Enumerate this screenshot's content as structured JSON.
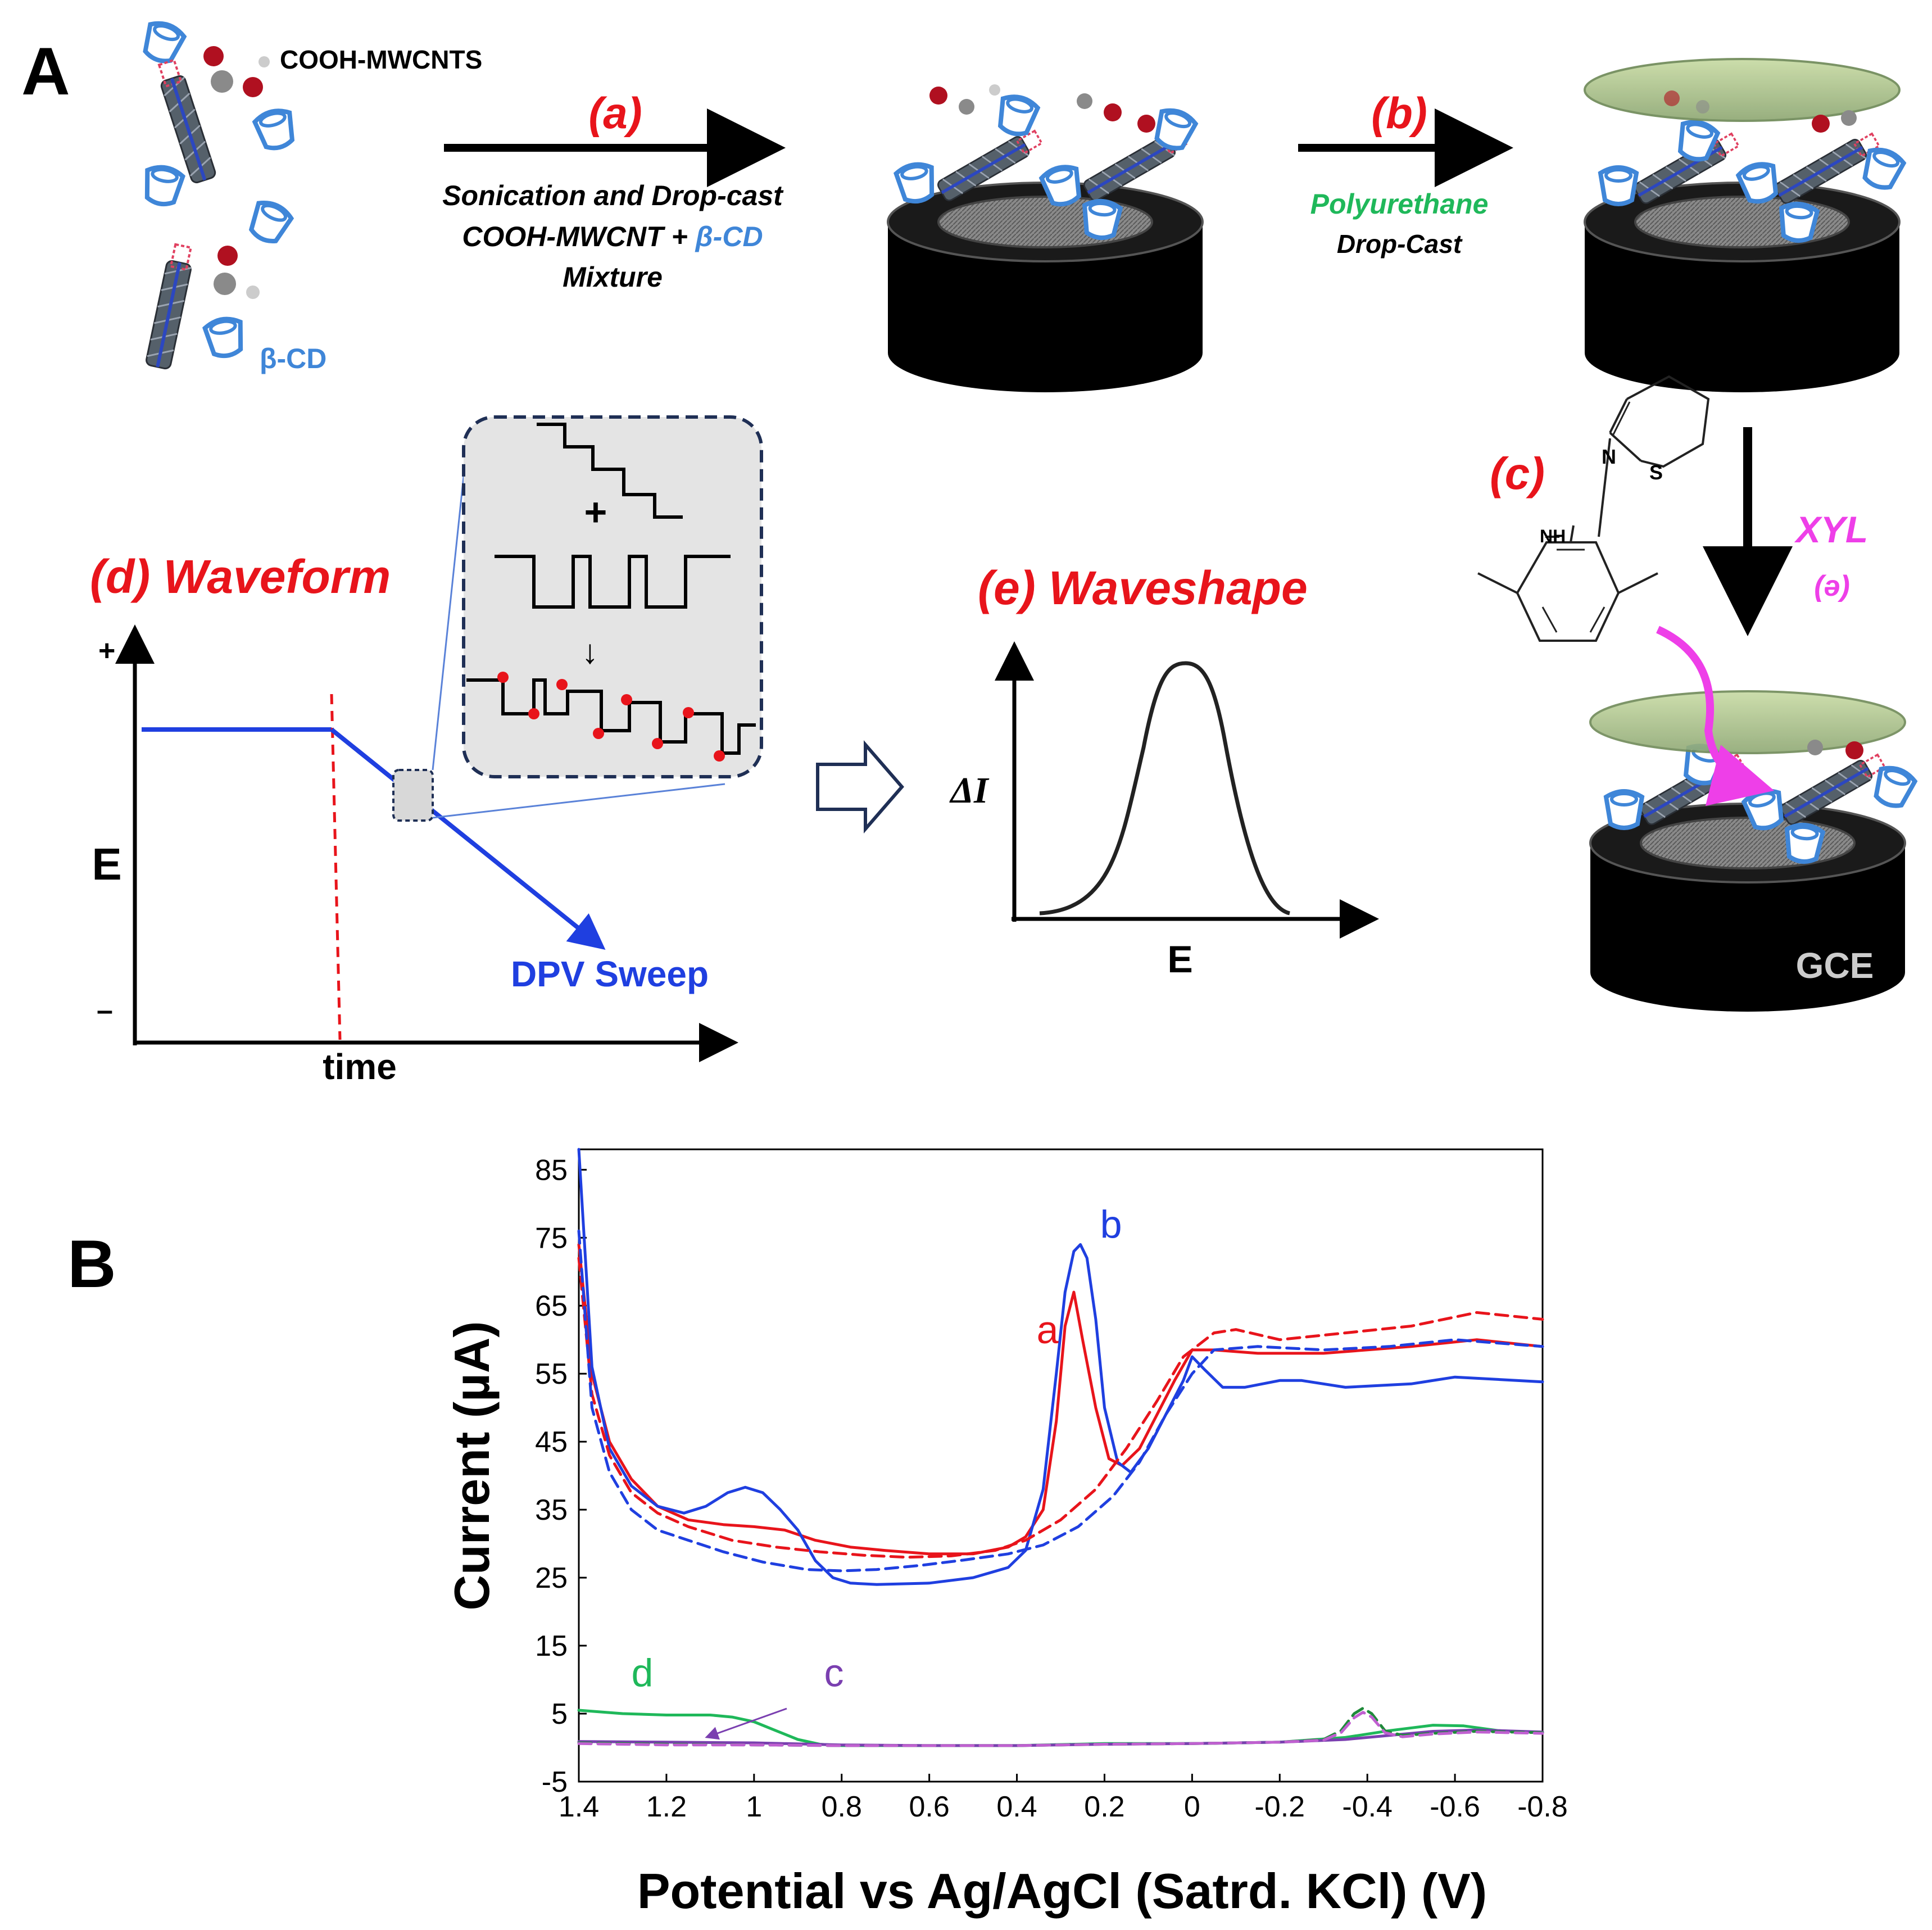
{
  "panel_a": {
    "label": "A",
    "cooh_label": "COOH-MWCNTS",
    "bcd_label": "β-CD",
    "step_a": {
      "tag": "(a)",
      "line1": "Sonication and Drop-cast",
      "line2_black": "COOH-MWCNT + ",
      "line2_blue": "β-CD",
      "line3": "Mixture"
    },
    "step_b": {
      "tag": "(b)",
      "line1": "Polyurethane",
      "line2": "Drop-Cast"
    },
    "step_c": {
      "tag": "(c)",
      "nh_label": "NH",
      "n_label": "N",
      "s_label": "S"
    },
    "xyl": {
      "label": "XYL",
      "symbol": "(ə)"
    },
    "gce_label": "GCE",
    "waveform": {
      "title": "(d) Waveform",
      "plus": "+",
      "minus": "–",
      "y_label": "E",
      "x_label": "time",
      "sweep_label": "DPV Sweep",
      "inset_plus": "+",
      "inset_arrow": "↓"
    },
    "waveshape": {
      "title": "(e) Waveshape",
      "y_label": "ΔI",
      "x_label": "E"
    },
    "colors": {
      "red": "#e8141b",
      "blue": "#1f3fe0",
      "green": "#1fb85a",
      "magenta": "#ee3fe8",
      "cd_blue": "#3f86d8"
    }
  },
  "panel_b": {
    "label": "B",
    "chart_data": {
      "type": "line",
      "xlabel": "Potential vs Ag/AgCl (Satrd. KCl) (V)",
      "ylabel": "Current (µA)",
      "x_range": [
        1.4,
        -0.8
      ],
      "ylim": [
        -5,
        88
      ],
      "x_ticks": [
        "1.4",
        "1.2",
        "1",
        "0.8",
        "0.6",
        "0.4",
        "0.2",
        "0",
        "-0.2",
        "-0.4",
        "-0.6",
        "-0.8"
      ],
      "x_tick_values": [
        1.4,
        1.2,
        1.0,
        0.8,
        0.6,
        0.4,
        0.2,
        0,
        -0.2,
        -0.4,
        -0.6,
        -0.8
      ],
      "y_ticks": [
        "85",
        "75",
        "65",
        "55",
        "45",
        "35",
        "25",
        "15",
        "5",
        "-5"
      ],
      "y_tick_values": [
        85,
        75,
        65,
        55,
        45,
        35,
        25,
        15,
        5,
        -5
      ],
      "grid": false,
      "series": [
        {
          "name": "a",
          "color": "#e8141b",
          "dash": false,
          "x": [
            1.4,
            1.37,
            1.33,
            1.28,
            1.22,
            1.15,
            1.07,
            1.0,
            0.93,
            0.86,
            0.78,
            0.7,
            0.6,
            0.5,
            0.42,
            0.38,
            0.34,
            0.31,
            0.29,
            0.27,
            0.25,
            0.22,
            0.19,
            0.16,
            0.12,
            0.08,
            0.04,
            0.0,
            -0.05,
            -0.15,
            -0.3,
            -0.5,
            -0.65,
            -0.8
          ],
          "y": [
            74,
            55,
            45,
            39.5,
            35.5,
            33.5,
            32.8,
            32.5,
            32,
            30.5,
            29.5,
            29,
            28.5,
            28.5,
            29.5,
            31,
            35,
            48,
            62,
            67,
            60,
            50,
            42.5,
            41.5,
            44,
            49,
            54,
            58.5,
            58.5,
            58,
            58,
            59,
            60,
            59
          ]
        },
        {
          "name": "b",
          "color": "#1f3fe0",
          "dash": false,
          "x": [
            1.4,
            1.37,
            1.33,
            1.28,
            1.22,
            1.16,
            1.11,
            1.06,
            1.02,
            0.98,
            0.94,
            0.9,
            0.86,
            0.82,
            0.78,
            0.72,
            0.6,
            0.5,
            0.42,
            0.38,
            0.34,
            0.31,
            0.29,
            0.27,
            0.255,
            0.24,
            0.22,
            0.2,
            0.17,
            0.14,
            0.1,
            0.06,
            0.02,
            0.0,
            -0.03,
            -0.07,
            -0.12,
            -0.2,
            -0.25,
            -0.35,
            -0.5,
            -0.6,
            -0.8
          ],
          "y": [
            88,
            56,
            44,
            38.5,
            35.5,
            34.5,
            35.5,
            37.5,
            38.3,
            37.5,
            35,
            32,
            27.5,
            25,
            24.2,
            24,
            24.2,
            25,
            26.5,
            29,
            38,
            55,
            67,
            73,
            74,
            72,
            63,
            50,
            42,
            40.5,
            44,
            49,
            54,
            57.5,
            55.5,
            53,
            53,
            54,
            54,
            53,
            53.5,
            54.5,
            53.8
          ]
        },
        {
          "name": "a-dashed",
          "color": "#e8141b",
          "dash": true,
          "x": [
            1.4,
            1.37,
            1.33,
            1.28,
            1.22,
            1.15,
            1.05,
            0.95,
            0.85,
            0.75,
            0.65,
            0.55,
            0.45,
            0.38,
            0.3,
            0.22,
            0.15,
            0.08,
            0.02,
            -0.05,
            -0.1,
            -0.2,
            -0.35,
            -0.5,
            -0.65,
            -0.8
          ],
          "y": [
            72,
            52,
            43,
            37.5,
            34.5,
            32.5,
            30.5,
            29.5,
            28.8,
            28.3,
            28,
            28.2,
            29,
            30.5,
            33.5,
            38,
            44,
            51,
            57.5,
            61,
            61.5,
            60,
            61,
            62,
            64,
            63
          ]
        },
        {
          "name": "b-dashed",
          "color": "#1f3fe0",
          "dash": true,
          "x": [
            1.4,
            1.37,
            1.33,
            1.28,
            1.22,
            1.15,
            1.07,
            0.98,
            0.88,
            0.8,
            0.72,
            0.62,
            0.52,
            0.42,
            0.34,
            0.26,
            0.18,
            0.12,
            0.06,
            0.0,
            -0.05,
            -0.15,
            -0.3,
            -0.45,
            -0.6,
            -0.8
          ],
          "y": [
            76,
            50,
            40.5,
            35,
            32,
            30.5,
            28.8,
            27.3,
            26.2,
            26,
            26.2,
            26.8,
            27.6,
            28.5,
            29.8,
            32.5,
            37,
            42,
            49,
            55,
            58.5,
            59,
            58.5,
            59,
            60,
            59
          ]
        },
        {
          "name": "d",
          "color": "#1fb85a",
          "dash": false,
          "x": [
            1.4,
            1.3,
            1.2,
            1.1,
            1.05,
            1.0,
            0.95,
            0.9,
            0.85,
            0.8,
            0.6,
            0.4,
            0.2,
            0.0,
            -0.2,
            -0.35,
            -0.45,
            -0.55,
            -0.62,
            -0.7,
            -0.8
          ],
          "y": [
            5.5,
            5,
            4.8,
            4.8,
            4.5,
            3.8,
            2.5,
            1.2,
            0.5,
            0.3,
            0.3,
            0.3,
            0.6,
            0.6,
            0.8,
            1.5,
            2.5,
            3.3,
            3.2,
            2.5,
            2.2
          ]
        },
        {
          "name": "c",
          "color": "#7a3fb0",
          "dash": false,
          "x": [
            1.4,
            1.2,
            1.0,
            0.8,
            0.6,
            0.4,
            0.2,
            0.0,
            -0.2,
            -0.35,
            -0.45,
            -0.55,
            -0.65,
            -0.8
          ],
          "y": [
            0.9,
            0.8,
            0.7,
            0.4,
            0.3,
            0.3,
            0.5,
            0.6,
            0.8,
            1.2,
            1.8,
            2.4,
            2.6,
            2.3
          ]
        },
        {
          "name": "d-dashed",
          "color": "#1f8a3a",
          "dash": true,
          "x": [
            1.4,
            1.2,
            1.0,
            0.8,
            0.6,
            0.4,
            0.2,
            0.0,
            -0.2,
            -0.3,
            -0.34,
            -0.37,
            -0.39,
            -0.41,
            -0.44,
            -0.48,
            -0.55,
            -0.65,
            -0.8
          ],
          "y": [
            0.7,
            0.5,
            0.4,
            0.3,
            0.3,
            0.3,
            0.5,
            0.6,
            0.8,
            1.2,
            2.5,
            5,
            5.8,
            5,
            2.5,
            1.8,
            2.1,
            2.4,
            2.2
          ]
        },
        {
          "name": "c-dashed",
          "color": "#c060d0",
          "dash": true,
          "x": [
            1.4,
            1.2,
            1.0,
            0.8,
            0.6,
            0.4,
            0.2,
            0.0,
            -0.2,
            -0.3,
            -0.34,
            -0.37,
            -0.39,
            -0.41,
            -0.44,
            -0.48,
            -0.55,
            -0.65,
            -0.8
          ],
          "y": [
            0.6,
            0.4,
            0.4,
            0.3,
            0.3,
            0.3,
            0.5,
            0.6,
            0.8,
            1.1,
            2.2,
            4.4,
            5.2,
            4.5,
            2.2,
            1.6,
            2.0,
            2.3,
            2.1
          ]
        }
      ],
      "annotations": [
        {
          "text": "a",
          "color": "#e8141b",
          "x": 0.355,
          "y": 59.5
        },
        {
          "text": "b",
          "color": "#1f3fe0",
          "x": 0.21,
          "y": 75
        },
        {
          "text": "d",
          "color": "#1fb85a",
          "x": 1.28,
          "y": 9
        },
        {
          "text": "c",
          "color": "#7a3fb0",
          "x": 0.84,
          "y": 9
        }
      ]
    }
  }
}
